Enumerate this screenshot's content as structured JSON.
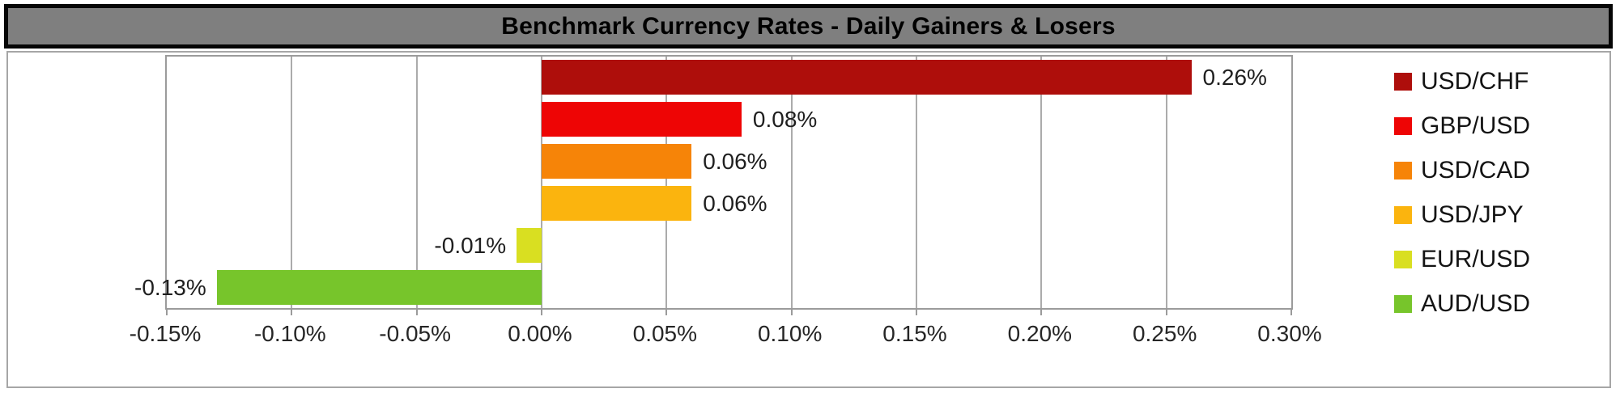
{
  "title": "Benchmark Currency Rates - Daily Gainers & Losers",
  "chart_data": {
    "type": "bar",
    "orientation": "horizontal",
    "title": "Benchmark Currency Rates - Daily Gainers & Losers",
    "categories": [
      "USD/CHF",
      "GBP/USD",
      "USD/CAD",
      "USD/JPY",
      "EUR/USD",
      "AUD/USD"
    ],
    "values": [
      0.26,
      0.08,
      0.06,
      0.06,
      -0.01,
      -0.13
    ],
    "data_labels": [
      "0.26%",
      "0.08%",
      "0.06%",
      "0.06%",
      "-0.01%",
      "-0.13%"
    ],
    "series_colors": [
      "#AE0E0B",
      "#EE0505",
      "#F68408",
      "#FBB40E",
      "#D9DF21",
      "#77C52B"
    ],
    "xlim": [
      -0.15,
      0.3
    ],
    "x_tick_values": [
      -0.15,
      -0.1,
      -0.05,
      0.0,
      0.05,
      0.1,
      0.15,
      0.2,
      0.25,
      0.3
    ],
    "x_tick_labels": [
      "-0.15%",
      "-0.10%",
      "-0.05%",
      "0.00%",
      "0.05%",
      "0.10%",
      "0.15%",
      "0.20%",
      "0.25%",
      "0.30%"
    ],
    "grid": true,
    "legend_position": "right",
    "legend": [
      {
        "label": "USD/CHF",
        "color": "#AE0E0B"
      },
      {
        "label": "GBP/USD",
        "color": "#EE0505"
      },
      {
        "label": "USD/CAD",
        "color": "#F68408"
      },
      {
        "label": "USD/JPY",
        "color": "#FBB40E"
      },
      {
        "label": "EUR/USD",
        "color": "#D9DF21"
      },
      {
        "label": "AUD/USD",
        "color": "#77C52B"
      }
    ]
  },
  "colors": {
    "title_bar_bg": "#7F7F7F",
    "title_bar_border": "#060606",
    "chart_border": "#A6A6A6",
    "plot_border": "#9B9B9B",
    "gridline": "#ABABAB",
    "label_text": "#1F1F1F"
  }
}
